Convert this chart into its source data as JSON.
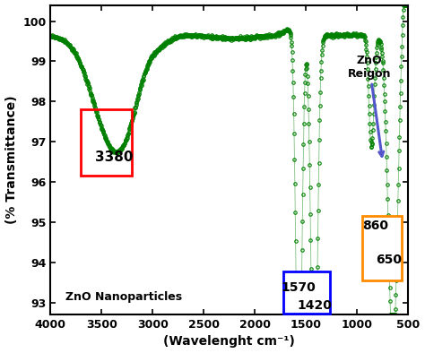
{
  "xlabel": "(Wavelenght cm⁻¹)",
  "ylabel": "(% Transmittance)",
  "xlim": [
    4000,
    500
  ],
  "ylim": [
    92.7,
    100.4
  ],
  "yticks": [
    93,
    94,
    95,
    96,
    97,
    98,
    99,
    100
  ],
  "xticks": [
    4000,
    3500,
    3000,
    2500,
    2000,
    1500,
    1000,
    500
  ],
  "line_color": "#008000",
  "annotation_3380": "3380",
  "annotation_1570": "1570",
  "annotation_1420": "1420",
  "annotation_860": "860",
  "annotation_650": "650",
  "annotation_ZnO": "ZnO\nReigon",
  "label_nanoparticles": "ZnO Nanoparticles",
  "background_color": "#ffffff"
}
